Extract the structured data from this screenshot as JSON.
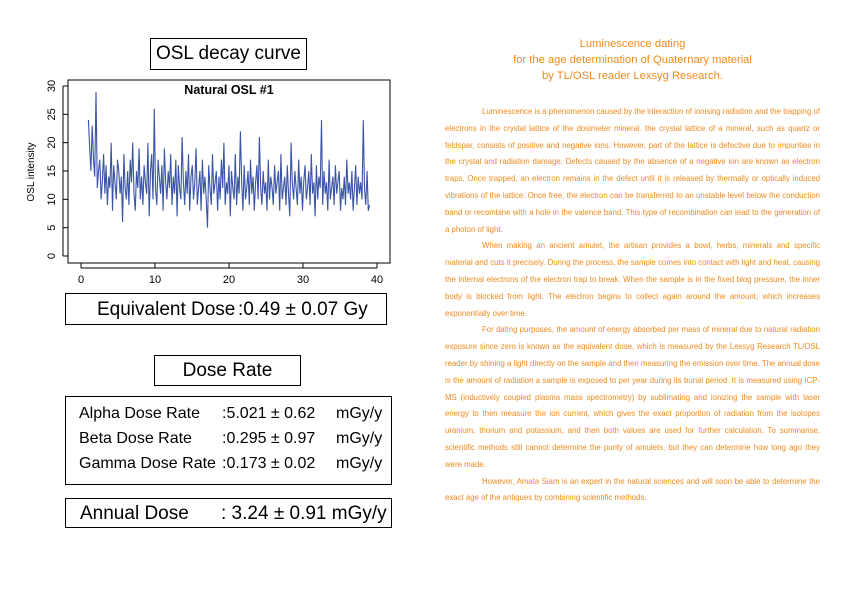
{
  "osl_panel": {
    "title": "OSL decay curve"
  },
  "chart_data": {
    "type": "line",
    "title": "Natural OSL #1",
    "xlabel": "",
    "ylabel": "OSL intensity",
    "xlim": [
      0,
      40
    ],
    "ylim": [
      0,
      30
    ],
    "xticks": [
      0,
      10,
      20,
      30,
      40
    ],
    "yticks": [
      0,
      5,
      10,
      15,
      20,
      25,
      30
    ],
    "color": "#3b55a6",
    "series": [
      {
        "values": [
          24,
          19,
          15,
          23,
          17,
          14,
          29,
          12,
          15,
          17,
          10,
          13,
          18,
          11,
          16,
          9,
          14,
          12,
          20,
          8,
          16,
          13,
          10,
          17,
          15,
          11,
          14,
          6,
          18,
          12,
          10,
          15,
          9,
          17,
          13,
          20,
          11,
          8,
          15,
          12,
          19,
          10,
          14,
          9,
          16,
          13,
          11,
          20,
          7,
          15,
          18,
          10,
          26,
          12,
          9,
          17,
          14,
          11,
          16,
          8,
          19,
          13,
          10,
          15,
          12,
          18,
          9,
          14,
          11,
          17,
          7,
          16,
          12,
          10,
          21,
          13,
          9,
          15,
          11,
          18,
          8,
          14,
          16,
          10,
          13,
          19,
          9,
          12,
          15,
          8,
          17,
          11,
          14,
          10,
          5,
          16,
          12,
          9,
          18,
          11,
          13,
          15,
          8,
          14,
          10,
          17,
          12,
          20,
          9,
          13,
          11,
          16,
          7,
          15,
          12,
          10,
          18,
          9,
          14,
          11,
          22,
          13,
          8,
          16,
          10,
          12,
          15,
          9,
          17,
          11,
          14,
          8,
          13,
          16,
          10,
          21,
          12,
          9,
          15,
          11,
          13,
          8,
          17,
          10,
          14,
          12,
          9,
          16,
          11,
          13,
          15,
          8,
          18,
          10,
          12,
          14,
          9,
          16,
          11,
          7,
          20,
          13,
          10,
          15,
          12,
          9,
          17,
          11,
          14,
          8,
          13,
          16,
          10,
          12,
          15,
          9,
          18,
          11,
          13,
          7,
          16,
          10,
          14,
          12,
          24,
          9,
          15,
          11,
          13,
          8,
          17,
          10,
          12,
          14,
          9,
          16,
          11,
          13,
          15,
          8,
          12,
          10,
          14,
          9,
          17,
          11,
          13,
          10,
          15,
          8,
          12,
          16,
          9,
          14,
          11,
          13,
          10,
          24,
          12,
          9,
          15,
          8,
          9
        ]
      }
    ]
  },
  "equivalent_dose": {
    "label": "Equivalent Dose",
    "value": ":0.49 ± 0.07 Gy"
  },
  "dose_rate": {
    "title": "Dose Rate",
    "rows": [
      {
        "label": "Alpha Dose Rate",
        "value": ":5.021 ± 0.62",
        "unit": "mGy/y"
      },
      {
        "label": "Beta Dose Rate",
        "value": ":0.295 ± 0.97",
        "unit": "mGy/y"
      },
      {
        "label": "Gamma Dose Rate",
        "value": ":0.173 ± 0.02",
        "unit": "mGy/y"
      }
    ]
  },
  "annual_dose": {
    "label": "Annual Dose",
    "value": ": 3.24 ± 0.91 mGy/y"
  },
  "article": {
    "title_lines": [
      "Luminescence dating",
      "for the age determination of Quaternary material",
      "by TL/OSL reader Lexsyg Research."
    ],
    "paragraphs": [
      "Luminescence is a phenomenon caused by the interaction of ionising radiation and the trapping of electrons in the crystal lattice of the dosimeter mineral. the crystal lattice of a mineral, such as quartz or feldspar, consists of positive and negative ions. However, part of the lattice is defective due to impurities in the crystal and radiation damage. Defects caused by the absence of a negative ion are known as electron traps. Once trapped, an electron remains in the defect until it is released by thermally or optically induced vibrations of the lattice. Once free, the electron can be transferred to an unstable level below the conduction band or recombine with a hole in the valence band. This type of recombination can lead to the generation of a photon of light.",
      "When making an ancient amulet, the artisan provides a bowl, herbs, minerals and specific material and cuts it precisely. During the process, the sample comes into contact with light and heat, causing the internal electrons of the electron trap to break. When the sample is in the fixed blog pressure, the inner body is blocked from light. The electron begins to collect again around the amount, which increases exponentially over time.",
      "For dating purposes, the amount of energy absorbed per mass of mineral due to natural radiation exposure since zero is known as the equivalent dose, which is measured by the Lexsyg Research TL/OSL reader by shining a light directly on the sample and then measuring the emission over time. The annual dose is the amount of radiation a sample is exposed to per year during its burial period. It is measured using ICP-MS (inductively coupled plasma mass spectrometry) by sublimating and ionizing the sample with laser energy to then measure the ion current, which gives the exact proportion of radiation from the isotopes uranium, thorium and potassium, and then both values are used for further calculation. To summarise, scientific methods still cannot determine the purity of amulets, but they can determine how long ago they were made.",
      "However, Amata Siam is an expert in the natural sciences and will soon be able to determine the exact age of the antiques by combining scientific methods."
    ]
  }
}
